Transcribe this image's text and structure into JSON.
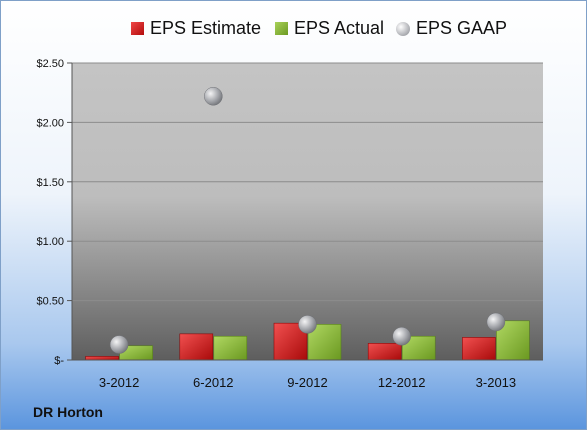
{
  "company": "DR Horton",
  "chart_data": {
    "type": "bar",
    "categories": [
      "3-2012",
      "6-2012",
      "9-2012",
      "12-2012",
      "3-2013"
    ],
    "series": [
      {
        "name": "EPS Estimate",
        "kind": "bar",
        "color": "#d42020",
        "values": [
          0.03,
          0.22,
          0.31,
          0.14,
          0.19
        ]
      },
      {
        "name": "EPS Actual",
        "kind": "bar",
        "color": "#8fbe3c",
        "values": [
          0.12,
          0.2,
          0.3,
          0.2,
          0.33
        ]
      },
      {
        "name": "EPS GAAP",
        "kind": "scatter",
        "color": "#9a9ca1",
        "values": [
          0.13,
          2.22,
          0.3,
          0.2,
          0.32
        ]
      }
    ],
    "y_ticks": [
      {
        "value": 0,
        "label": "$-"
      },
      {
        "value": 0.5,
        "label": "$0.50"
      },
      {
        "value": 1.0,
        "label": "$1.00"
      },
      {
        "value": 1.5,
        "label": "$1.50"
      },
      {
        "value": 2.0,
        "label": "$2.00"
      },
      {
        "value": 2.5,
        "label": "$2.50"
      }
    ],
    "ylim": [
      0,
      2.5
    ],
    "grid": true,
    "legend": "top"
  }
}
